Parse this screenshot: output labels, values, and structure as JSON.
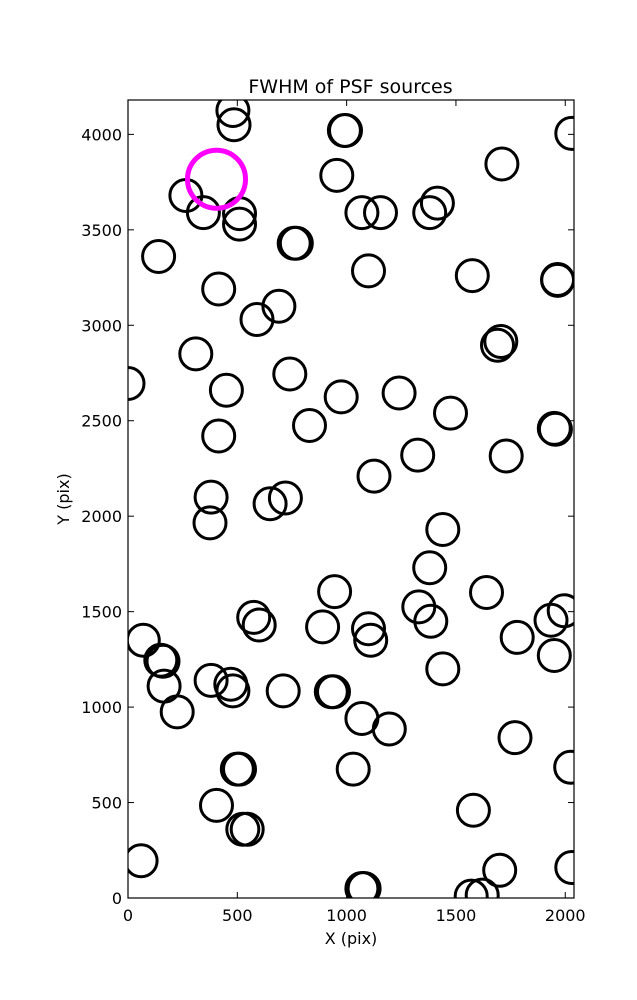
{
  "chart_data": {
    "type": "scatter",
    "title": "FWHM of PSF sources",
    "xlabel": "X (pix)",
    "ylabel": "Y (pix)",
    "xlim": [
      0,
      2040
    ],
    "ylim": [
      0,
      4180
    ],
    "xticks": [
      0,
      500,
      1000,
      1500,
      2000
    ],
    "yticks": [
      0,
      500,
      1000,
      1500,
      2000,
      2500,
      3000,
      3500,
      4000
    ],
    "grid": false,
    "marker": "open-circle",
    "colors": {
      "sources": "#000000",
      "highlight": "#ff00ff"
    },
    "series": [
      {
        "role": "sources",
        "points": [
          [
            60,
            195
          ],
          [
            545,
            360
          ],
          [
            525,
            360
          ],
          [
            405,
            485
          ],
          [
            500,
            675
          ],
          [
            510,
            675
          ],
          [
            1030,
            675
          ],
          [
            1195,
            885
          ],
          [
            1070,
            940
          ],
          [
            1770,
            840
          ],
          [
            1580,
            460
          ],
          [
            1700,
            145
          ],
          [
            1620,
            15
          ],
          [
            1570,
            10
          ],
          [
            1070,
            50
          ],
          [
            1080,
            50
          ],
          [
            2030,
            160
          ],
          [
            2025,
            685
          ],
          [
            225,
            975
          ],
          [
            165,
            1110
          ],
          [
            380,
            1140
          ],
          [
            470,
            1120
          ],
          [
            480,
            1085
          ],
          [
            710,
            1085
          ],
          [
            930,
            1080
          ],
          [
            940,
            1080
          ],
          [
            150,
            1245
          ],
          [
            160,
            1240
          ],
          [
            70,
            1350
          ],
          [
            575,
            1470
          ],
          [
            600,
            1430
          ],
          [
            890,
            1420
          ],
          [
            945,
            1605
          ],
          [
            1100,
            1410
          ],
          [
            1110,
            1350
          ],
          [
            1330,
            1525
          ],
          [
            1385,
            1450
          ],
          [
            1440,
            1200
          ],
          [
            1380,
            1730
          ],
          [
            1640,
            1600
          ],
          [
            1780,
            1365
          ],
          [
            1935,
            1455
          ],
          [
            1950,
            1270
          ],
          [
            1995,
            1505
          ],
          [
            375,
            1965
          ],
          [
            380,
            2100
          ],
          [
            650,
            2065
          ],
          [
            720,
            2095
          ],
          [
            415,
            2420
          ],
          [
            450,
            2660
          ],
          [
            310,
            2850
          ],
          [
            740,
            2745
          ],
          [
            830,
            2475
          ],
          [
            975,
            2625
          ],
          [
            1125,
            2210
          ],
          [
            1240,
            2645
          ],
          [
            1325,
            2320
          ],
          [
            1440,
            1930
          ],
          [
            1475,
            2540
          ],
          [
            1730,
            2315
          ],
          [
            1950,
            2460
          ],
          [
            1955,
            2455
          ],
          [
            1690,
            2895
          ],
          [
            1705,
            2915
          ],
          [
            0,
            2695
          ],
          [
            590,
            3030
          ],
          [
            690,
            3100
          ],
          [
            415,
            3190
          ],
          [
            140,
            3360
          ],
          [
            265,
            3680
          ],
          [
            345,
            3590
          ],
          [
            510,
            3585
          ],
          [
            510,
            3530
          ],
          [
            760,
            3430
          ],
          [
            770,
            3430
          ],
          [
            955,
            3785
          ],
          [
            990,
            4020
          ],
          [
            995,
            4020
          ],
          [
            1070,
            3590
          ],
          [
            1100,
            3285
          ],
          [
            1155,
            3590
          ],
          [
            1380,
            3590
          ],
          [
            1415,
            3640
          ],
          [
            1575,
            3260
          ],
          [
            1710,
            3845
          ],
          [
            1965,
            3240
          ],
          [
            1965,
            3235
          ],
          [
            2030,
            4005
          ],
          [
            480,
            4125
          ],
          [
            485,
            4050
          ]
        ]
      },
      {
        "role": "highlight",
        "points": [
          [
            405,
            3765
          ]
        ]
      }
    ]
  }
}
